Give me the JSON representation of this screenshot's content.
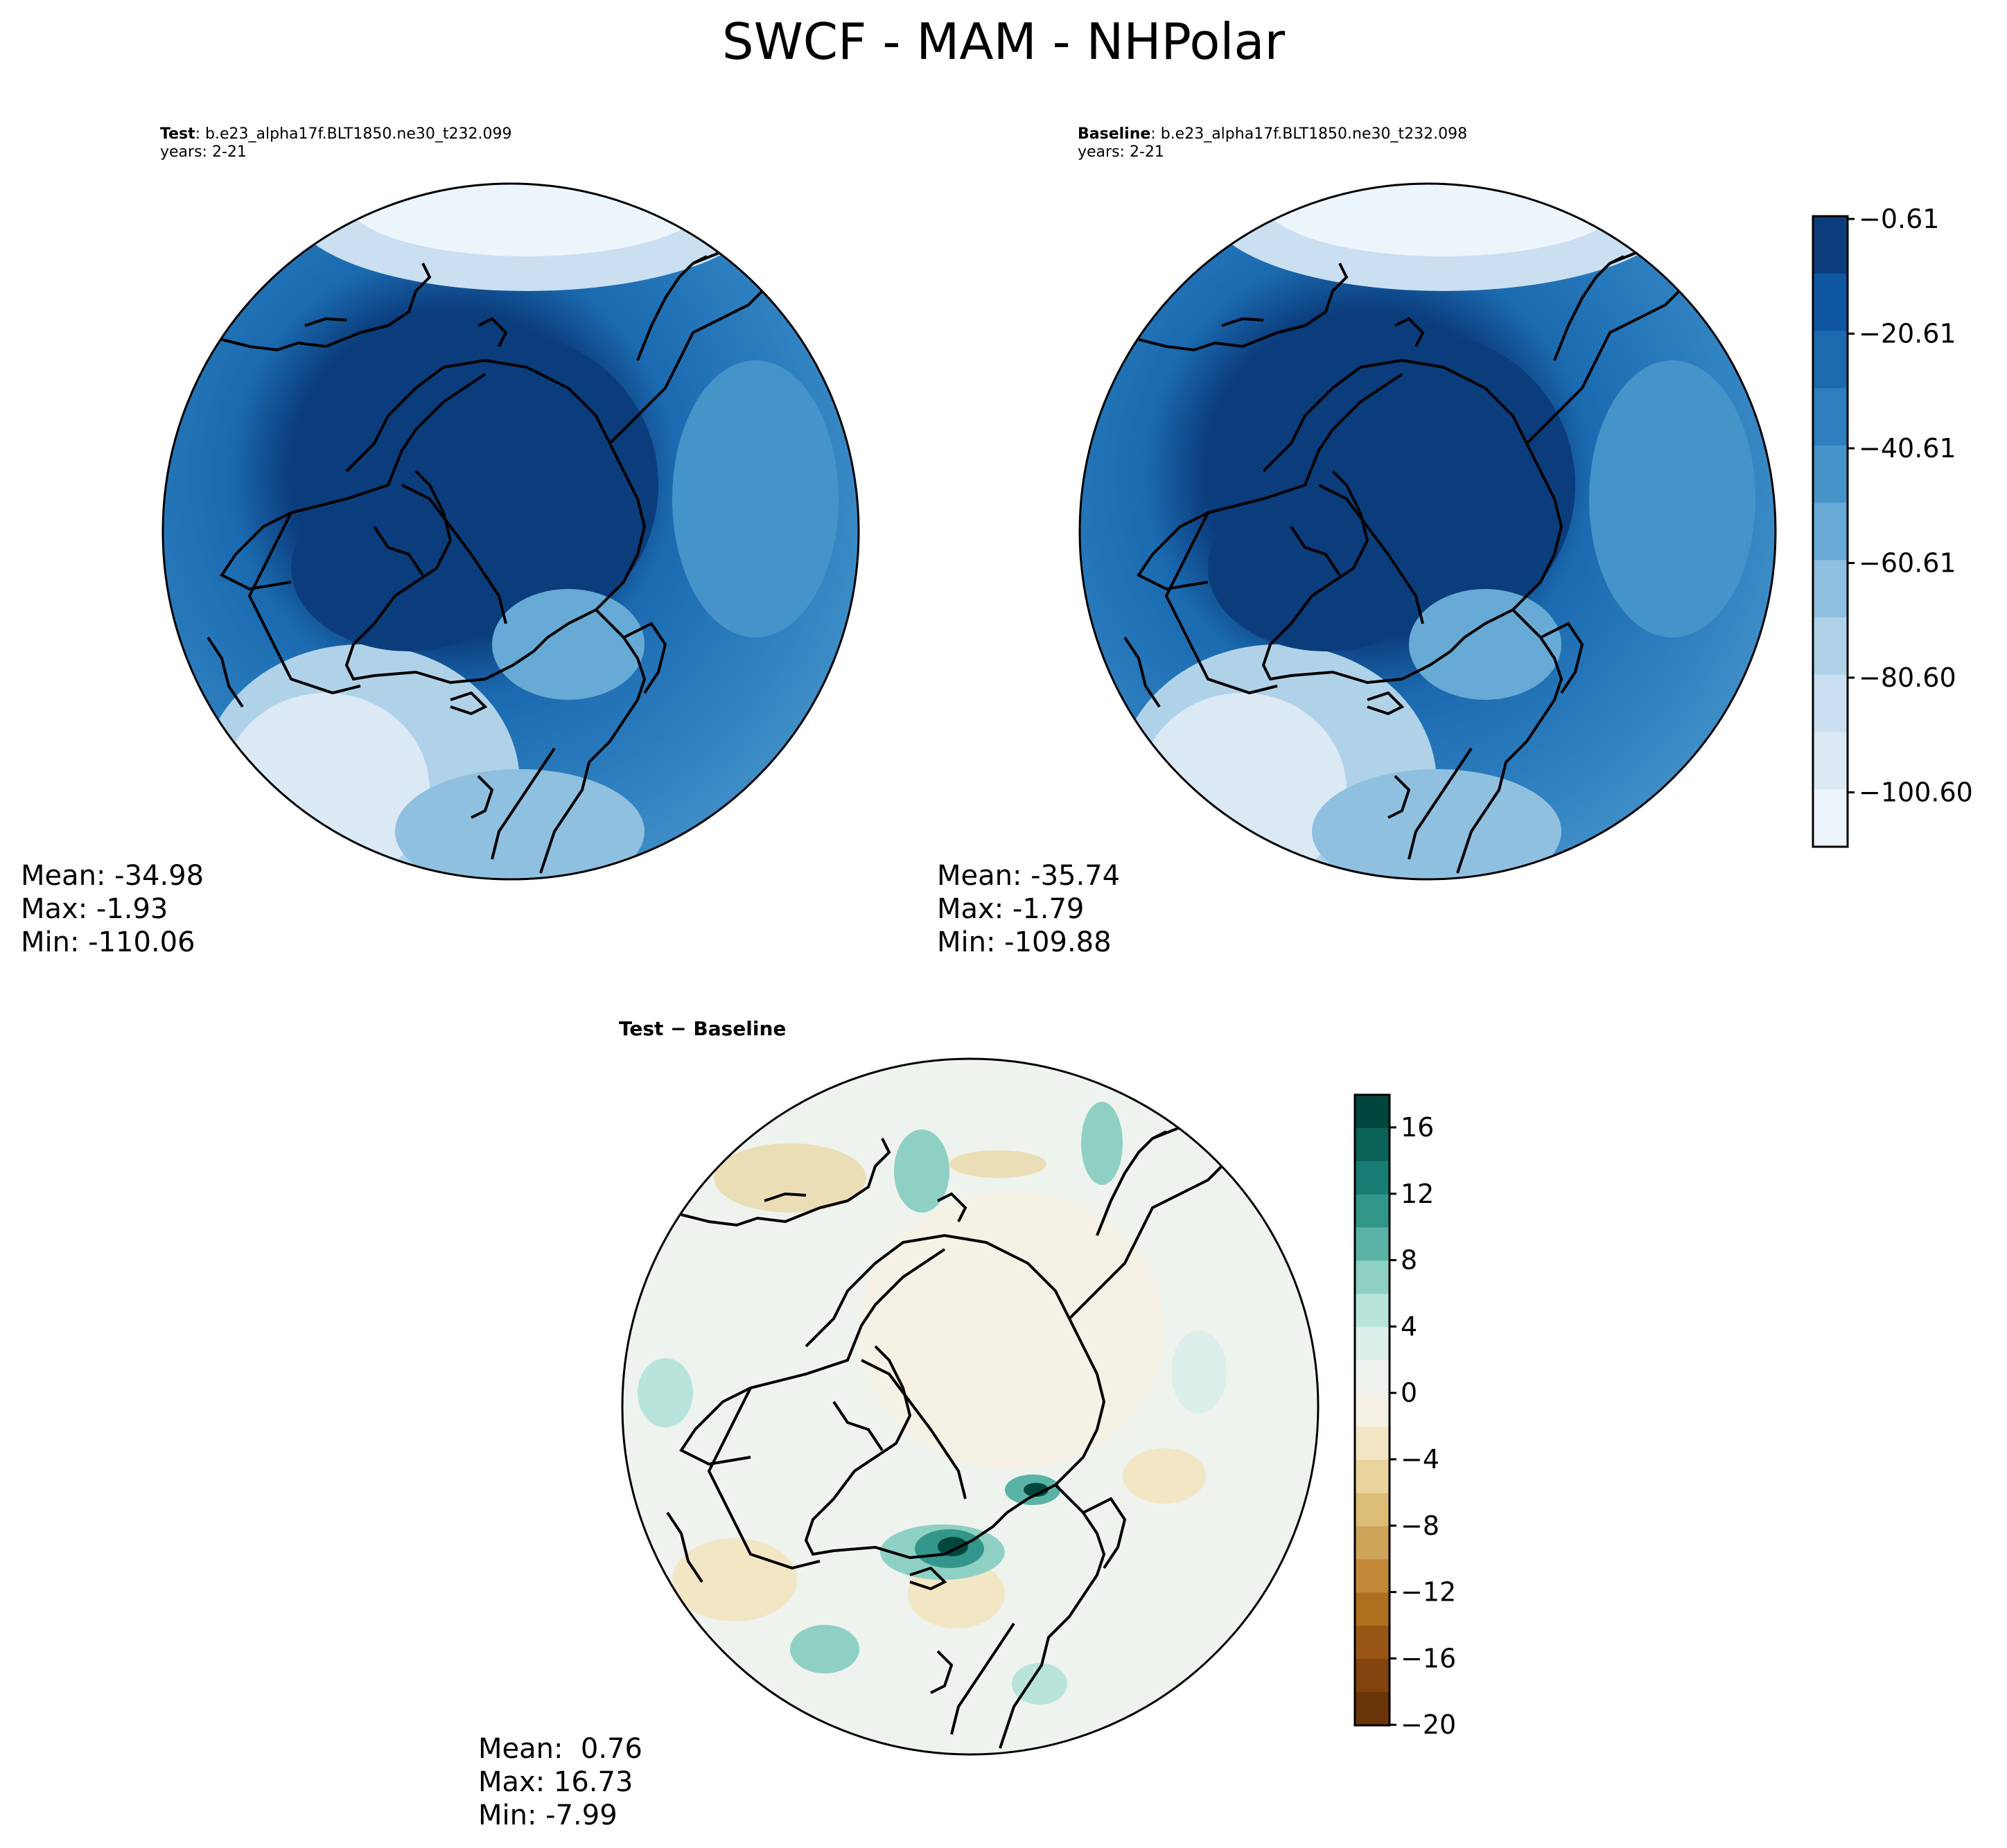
{
  "title": "SWCF - MAM - NHPolar",
  "panels": {
    "test": {
      "title_bold": "Test",
      "title_rest": ": b.e23_alpha17f.BLT1850.ne30_t232.099",
      "years": "years: 2-21",
      "stats": {
        "mean": "Mean: -34.98",
        "max": "Max: -1.93",
        "min": "Min: -110.06"
      }
    },
    "baseline": {
      "title_bold": "Baseline",
      "title_rest": ": b.e23_alpha17f.BLT1850.ne30_t232.098",
      "years": "years: 2-21",
      "stats": {
        "mean": "Mean: -35.74",
        "max": "Max: -1.79",
        "min": "Min: -109.88"
      }
    },
    "diff": {
      "title": "Test − Baseline",
      "stats": {
        "mean": "Mean:  0.76",
        "max": "Max: 16.73",
        "min": "Min: -7.99"
      }
    }
  },
  "colorbars": {
    "main": {
      "ticks": [
        "−0.61",
        "−20.61",
        "−40.61",
        "−60.61",
        "−80.60",
        "−100.60"
      ],
      "colors": [
        "#0b3d7c",
        "#0e56a0",
        "#1b6ab0",
        "#2d7fbf",
        "#4593c9",
        "#67aad5",
        "#8fc0df",
        "#b0d2e8",
        "#cadff0",
        "#dbe9f5",
        "#ecf4fc"
      ]
    },
    "diff": {
      "ticks": [
        "16",
        "12",
        "8",
        "4",
        "0",
        "−4",
        "−8",
        "−12",
        "−16",
        "−20"
      ],
      "colors": [
        "#01463d",
        "#0a6258",
        "#177d72",
        "#33968a",
        "#5bb2a6",
        "#8fd0c4",
        "#b8e4dc",
        "#dcefeb",
        "#eef3ee",
        "#f5f1e4",
        "#f3e6c4",
        "#e9d49e",
        "#dcbd75",
        "#cda45a",
        "#c28838",
        "#b06f1f",
        "#995515",
        "#82430d",
        "#6a3509"
      ]
    }
  }
}
